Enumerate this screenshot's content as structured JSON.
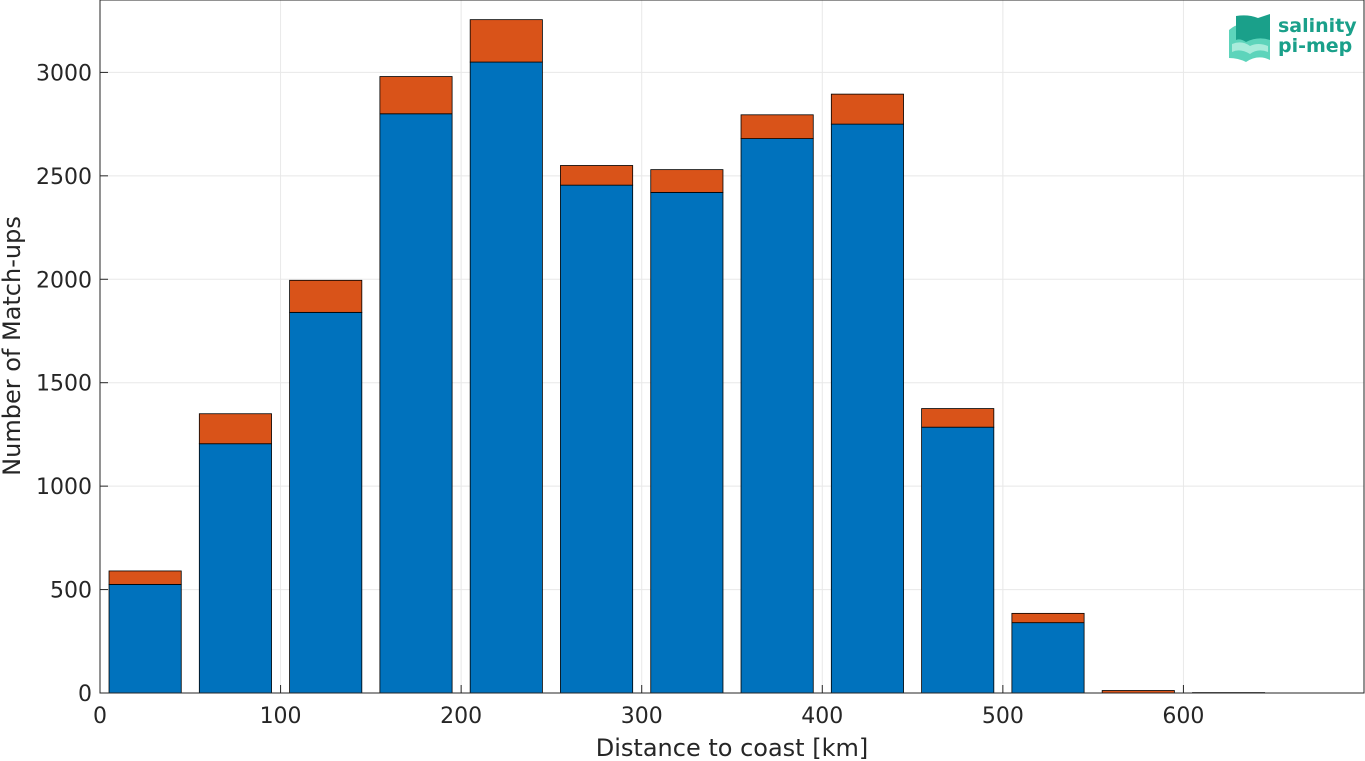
{
  "chart_data": {
    "type": "bar",
    "stacked": true,
    "bin_width": 50,
    "x": [
      25,
      75,
      125,
      175,
      225,
      275,
      325,
      375,
      425,
      475,
      525,
      575,
      625
    ],
    "series": [
      {
        "values": [
          525,
          1205,
          1840,
          2800,
          3050,
          2455,
          2420,
          2680,
          2750,
          1285,
          340,
          0,
          0
        ]
      },
      {
        "values": [
          65,
          145,
          155,
          180,
          205,
          95,
          110,
          115,
          145,
          90,
          45,
          12,
          2
        ]
      }
    ],
    "xlabel": "Distance to coast [km]",
    "ylabel": "Number of Match-ups",
    "xlim": [
      0,
      700
    ],
    "ylim": [
      0,
      3350
    ],
    "xticks": [
      0,
      100,
      200,
      300,
      400,
      500,
      600
    ],
    "yticks": [
      0,
      500,
      1000,
      1500,
      2000,
      2500,
      3000
    ],
    "grid": true
  },
  "colors": {
    "series_primary": "#0072bd",
    "series_secondary": "#d95319",
    "grid": "#e8e8e8",
    "axis": "#262626",
    "logo": "#1aa08a"
  },
  "logo": {
    "line1": "salinity",
    "line2": "pi-mep"
  }
}
